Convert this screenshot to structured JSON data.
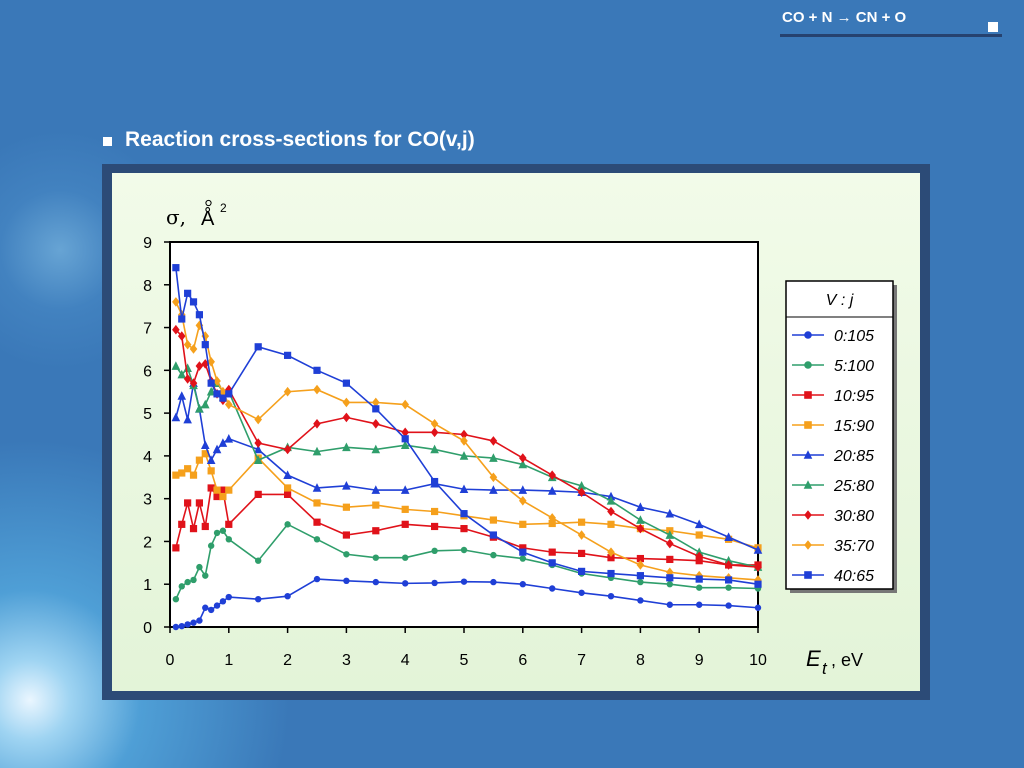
{
  "header": {
    "equation": "CO + N → CN + O"
  },
  "slide": {
    "title": "Reaction cross-sections for CO(v,j)"
  },
  "chart_data": {
    "type": "line",
    "ylabel": "σ, Å²",
    "ylabel_symbol": "σ,",
    "ylabel_unit": "Å",
    "ylabel_exp": "2",
    "xlabel_var": "E",
    "xlabel_sub": "t",
    "xlabel_unit": ", eV",
    "xlim": [
      0,
      10
    ],
    "ylim": [
      0,
      9
    ],
    "xticks": [
      "0",
      "1",
      "2",
      "3",
      "4",
      "5",
      "6",
      "7",
      "8",
      "9",
      "10"
    ],
    "yticks": [
      "0",
      "1",
      "2",
      "3",
      "4",
      "5",
      "6",
      "7",
      "8",
      "9"
    ],
    "legend_title": "V : j",
    "legend_position": "right",
    "grid": false,
    "series": [
      {
        "name": "0:105",
        "color": "#1f3fd6",
        "marker": "circle",
        "x": [
          0.1,
          0.2,
          0.3,
          0.4,
          0.5,
          0.6,
          0.7,
          0.8,
          0.9,
          1.0,
          1.5,
          2.0,
          2.5,
          3.0,
          3.5,
          4.0,
          4.5,
          5.0,
          5.5,
          6.0,
          6.5,
          7.0,
          7.5,
          8.0,
          8.5,
          9.0,
          9.5,
          10.0
        ],
        "y": [
          0.0,
          0.02,
          0.06,
          0.1,
          0.15,
          0.45,
          0.4,
          0.5,
          0.6,
          0.7,
          0.65,
          0.72,
          1.12,
          1.08,
          1.05,
          1.02,
          1.03,
          1.06,
          1.05,
          1.0,
          0.9,
          0.8,
          0.72,
          0.62,
          0.52,
          0.52,
          0.5,
          0.45
        ]
      },
      {
        "name": "5:100",
        "color": "#2f9e6b",
        "marker": "circle",
        "x": [
          0.1,
          0.2,
          0.3,
          0.4,
          0.5,
          0.6,
          0.7,
          0.8,
          0.9,
          1.0,
          1.5,
          2.0,
          2.5,
          3.0,
          3.5,
          4.0,
          4.5,
          5.0,
          5.5,
          6.0,
          6.5,
          7.0,
          7.5,
          8.0,
          8.5,
          9.0,
          9.5,
          10.0
        ],
        "y": [
          0.65,
          0.95,
          1.05,
          1.1,
          1.4,
          1.2,
          1.9,
          2.2,
          2.25,
          2.05,
          1.55,
          2.4,
          2.05,
          1.7,
          1.62,
          1.62,
          1.78,
          1.8,
          1.68,
          1.6,
          1.45,
          1.25,
          1.15,
          1.05,
          1.0,
          0.92,
          0.92,
          0.9
        ]
      },
      {
        "name": "10:95",
        "color": "#e0121a",
        "marker": "square",
        "x": [
          0.1,
          0.2,
          0.3,
          0.4,
          0.5,
          0.6,
          0.7,
          0.8,
          0.9,
          1.0,
          1.5,
          2.0,
          2.5,
          3.0,
          3.5,
          4.0,
          4.5,
          5.0,
          5.5,
          6.0,
          6.5,
          7.0,
          7.5,
          8.0,
          8.5,
          9.0,
          9.5,
          10.0
        ],
        "y": [
          1.85,
          2.4,
          2.9,
          2.3,
          2.9,
          2.35,
          3.25,
          3.05,
          3.2,
          2.4,
          3.1,
          3.1,
          2.45,
          2.15,
          2.25,
          2.4,
          2.35,
          2.3,
          2.1,
          1.85,
          1.75,
          1.72,
          1.62,
          1.6,
          1.58,
          1.55,
          1.45,
          1.45
        ]
      },
      {
        "name": "15:90",
        "color": "#f5a01c",
        "marker": "square",
        "x": [
          0.1,
          0.2,
          0.3,
          0.4,
          0.5,
          0.6,
          0.7,
          0.8,
          0.9,
          1.0,
          1.5,
          2.0,
          2.5,
          3.0,
          3.5,
          4.0,
          4.5,
          5.0,
          5.5,
          6.0,
          6.5,
          7.0,
          7.5,
          8.0,
          8.5,
          9.0,
          9.5,
          10.0
        ],
        "y": [
          3.55,
          3.6,
          3.7,
          3.55,
          3.9,
          4.05,
          3.65,
          3.2,
          3.05,
          3.2,
          3.95,
          3.25,
          2.9,
          2.8,
          2.85,
          2.75,
          2.7,
          2.6,
          2.5,
          2.4,
          2.42,
          2.45,
          2.4,
          2.3,
          2.25,
          2.15,
          2.05,
          1.85
        ]
      },
      {
        "name": "20:85",
        "color": "#1f3fd6",
        "marker": "triangle",
        "x": [
          0.1,
          0.2,
          0.3,
          0.4,
          0.5,
          0.6,
          0.7,
          0.8,
          0.9,
          1.0,
          1.5,
          2.0,
          2.5,
          3.0,
          3.5,
          4.0,
          4.5,
          5.0,
          5.5,
          6.0,
          6.5,
          7.0,
          7.5,
          8.0,
          8.5,
          9.0,
          9.5,
          10.0
        ],
        "y": [
          4.9,
          5.4,
          4.85,
          5.7,
          5.1,
          4.25,
          3.9,
          4.15,
          4.3,
          4.4,
          4.15,
          3.55,
          3.25,
          3.3,
          3.2,
          3.2,
          3.35,
          3.22,
          3.2,
          3.2,
          3.18,
          3.15,
          3.05,
          2.8,
          2.65,
          2.4,
          2.1,
          1.8
        ]
      },
      {
        "name": "25:80",
        "color": "#2f9e6b",
        "marker": "triangle",
        "x": [
          0.1,
          0.2,
          0.3,
          0.4,
          0.5,
          0.6,
          0.7,
          0.8,
          0.9,
          1.0,
          1.5,
          2.0,
          2.5,
          3.0,
          3.5,
          4.0,
          4.5,
          5.0,
          5.5,
          6.0,
          6.5,
          7.0,
          7.5,
          8.0,
          8.5,
          9.0,
          9.5,
          10.0
        ],
        "y": [
          6.1,
          5.9,
          6.05,
          5.65,
          5.1,
          5.2,
          5.5,
          5.7,
          5.5,
          5.5,
          3.9,
          4.2,
          4.1,
          4.2,
          4.15,
          4.25,
          4.15,
          4.0,
          3.95,
          3.8,
          3.5,
          3.3,
          2.95,
          2.5,
          2.15,
          1.75,
          1.55,
          1.4
        ]
      },
      {
        "name": "30:80",
        "color": "#e0121a",
        "marker": "diamond",
        "x": [
          0.1,
          0.2,
          0.3,
          0.4,
          0.5,
          0.6,
          0.7,
          0.8,
          0.9,
          1.0,
          1.5,
          2.0,
          2.5,
          3.0,
          3.5,
          4.0,
          4.5,
          5.0,
          5.5,
          6.0,
          6.5,
          7.0,
          7.5,
          8.0,
          8.5,
          9.0,
          9.5,
          10.0
        ],
        "y": [
          6.95,
          6.8,
          5.8,
          5.7,
          6.1,
          6.15,
          5.75,
          5.45,
          5.3,
          5.55,
          4.3,
          4.15,
          4.75,
          4.9,
          4.75,
          4.55,
          4.55,
          4.5,
          4.35,
          3.95,
          3.55,
          3.15,
          2.7,
          2.3,
          1.95,
          1.65,
          1.45,
          1.4
        ]
      },
      {
        "name": "35:70",
        "color": "#f5a01c",
        "marker": "diamond",
        "x": [
          0.1,
          0.2,
          0.3,
          0.4,
          0.5,
          0.6,
          0.7,
          0.8,
          0.9,
          1.0,
          1.5,
          2.0,
          2.5,
          3.0,
          3.5,
          4.0,
          4.5,
          5.0,
          5.5,
          6.0,
          6.5,
          7.0,
          7.5,
          8.0,
          8.5,
          9.0,
          9.5,
          10.0
        ],
        "y": [
          7.6,
          7.3,
          6.6,
          6.5,
          7.05,
          6.8,
          6.2,
          5.75,
          5.5,
          5.2,
          4.85,
          5.5,
          5.55,
          5.25,
          5.25,
          5.2,
          4.75,
          4.35,
          3.5,
          2.95,
          2.55,
          2.15,
          1.75,
          1.45,
          1.28,
          1.2,
          1.15,
          1.1
        ]
      },
      {
        "name": "40:65",
        "color": "#1f3fd6",
        "marker": "square",
        "x": [
          0.1,
          0.2,
          0.3,
          0.4,
          0.5,
          0.6,
          0.7,
          0.8,
          0.9,
          1.0,
          1.5,
          2.0,
          2.5,
          3.0,
          3.5,
          4.0,
          4.5,
          5.0,
          5.5,
          6.0,
          6.5,
          7.0,
          7.5,
          8.0,
          8.5,
          9.0,
          9.5,
          10.0
        ],
        "y": [
          8.4,
          7.2,
          7.8,
          7.6,
          7.3,
          6.6,
          5.7,
          5.45,
          5.35,
          5.45,
          6.55,
          6.35,
          6.0,
          5.7,
          5.1,
          4.4,
          3.4,
          2.65,
          2.15,
          1.75,
          1.5,
          1.3,
          1.25,
          1.2,
          1.15,
          1.12,
          1.1,
          1.0
        ]
      }
    ]
  }
}
